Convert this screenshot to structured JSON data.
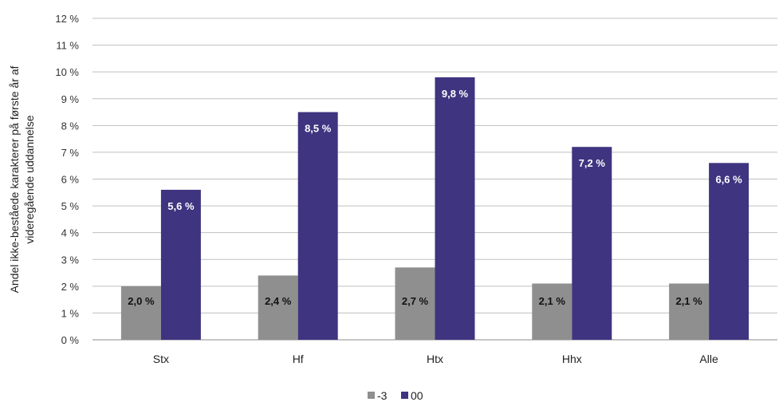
{
  "chart_data": {
    "type": "bar",
    "categories": [
      "Stx",
      "Hf",
      "Htx",
      "Hhx",
      "Alle"
    ],
    "series": [
      {
        "name": "-3",
        "values": [
          2.0,
          2.4,
          2.7,
          2.1,
          2.1
        ],
        "labels": [
          "2,0 %",
          "2,4 %",
          "2,7 %",
          "2,1 %",
          "2,1 %"
        ],
        "color": "#8f8f8f",
        "label_color": "#111111"
      },
      {
        "name": "00",
        "values": [
          5.6,
          8.5,
          9.8,
          7.2,
          6.6
        ],
        "labels": [
          "5,6 %",
          "8,5 %",
          "9,8 %",
          "7,2 %",
          "6,6 %"
        ],
        "color": "#3f3480",
        "label_color": "#ffffff"
      }
    ],
    "ylim": [
      0,
      12
    ],
    "yticks": [
      "0 %",
      "1 %",
      "2 %",
      "3 %",
      "4 %",
      "5 %",
      "6 %",
      "7 %",
      "8 %",
      "9 %",
      "10 %",
      "11 %",
      "12 %"
    ],
    "ylabel_lines": [
      "Andel ikke-beståede karakterer på første år af",
      "videregående uddannelse"
    ],
    "grid": true,
    "legend_position": "bottom"
  }
}
